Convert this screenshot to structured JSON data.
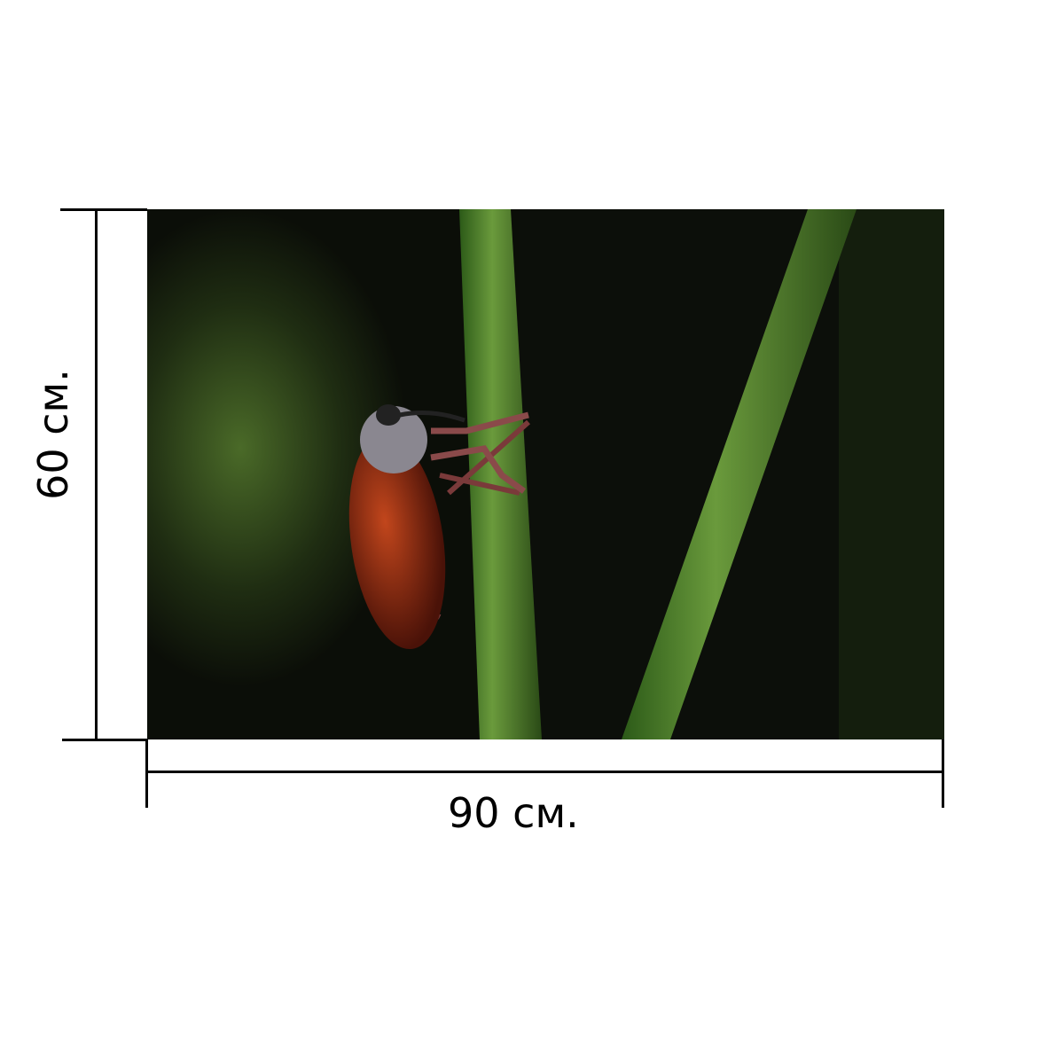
{
  "product": {
    "width_label": "90 см.",
    "height_label": "60 см.",
    "photo_subject": "beetle-on-grass-stem"
  },
  "colors": {
    "line": "#000000",
    "stem": "#3f7a22",
    "beetle": "#8a2a12"
  }
}
